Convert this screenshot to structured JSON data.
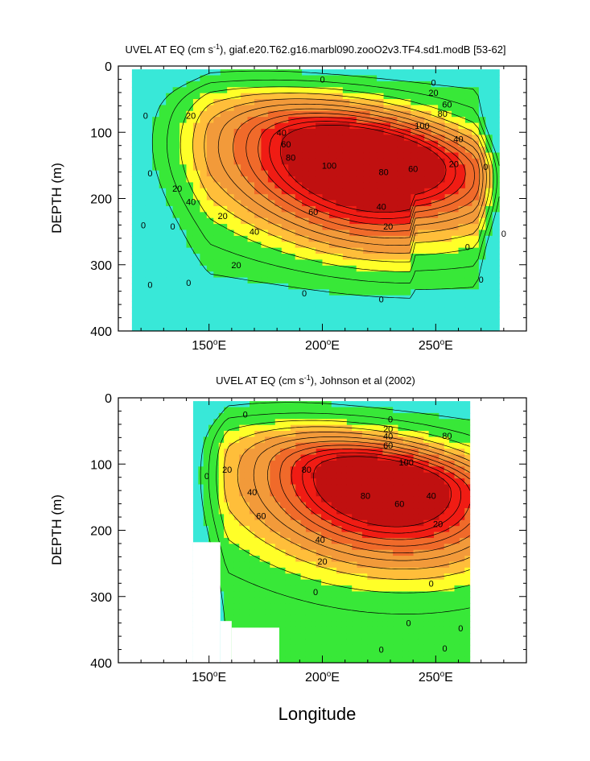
{
  "figure": {
    "xlabel_shared": "Longitude"
  },
  "colors": {
    "frame": "#000000",
    "levels": [
      {
        "min": -20,
        "max": 0,
        "color": "#38e8d8"
      },
      {
        "min": 0,
        "max": 20,
        "color": "#38e838"
      },
      {
        "min": 20,
        "max": 30,
        "color": "#ffff28"
      },
      {
        "min": 30,
        "max": 40,
        "color": "#ffbe3a"
      },
      {
        "min": 40,
        "max": 60,
        "color": "#f29a3a"
      },
      {
        "min": 60,
        "max": 80,
        "color": "#f06a2a"
      },
      {
        "min": 80,
        "max": 100,
        "color": "#f01c14"
      },
      {
        "min": 100,
        "max": 140,
        "color": "#c01010"
      }
    ]
  },
  "chart_data": [
    {
      "type": "heatmap",
      "title_prefix": "UVEL AT EQ (cm s",
      "title_sup": "-1",
      "title_suffix": "), giaf.e20.T62.g16.marbl090.zooO2v3.TF4.sd1.modB [53-62]",
      "ylabel": "DEPTH (m)",
      "xlabel": "",
      "xlim": [
        110,
        290
      ],
      "ylim": [
        0,
        400
      ],
      "y_inverted": true,
      "xticks": [
        {
          "value": 150,
          "label": "150°E"
        },
        {
          "value": 200,
          "label": "200°E"
        },
        {
          "value": 250,
          "label": "250°E"
        }
      ],
      "yticks": [
        0,
        100,
        200,
        300,
        400
      ],
      "data_extent": {
        "lon": [
          116,
          278
        ],
        "depth": [
          5,
          400
        ]
      },
      "core": {
        "lon": 220,
        "depth": 125,
        "max_speed": 110
      },
      "contour_levels": [
        0,
        10,
        20,
        30,
        40,
        50,
        60,
        70,
        80,
        90,
        100
      ],
      "contour_labels": [
        {
          "lon": 200,
          "depth": 20,
          "text": "0"
        },
        {
          "lon": 249,
          "depth": 25,
          "text": "0"
        },
        {
          "lon": 249,
          "depth": 40,
          "text": "20"
        },
        {
          "lon": 255,
          "depth": 58,
          "text": "60"
        },
        {
          "lon": 253,
          "depth": 72,
          "text": "80"
        },
        {
          "lon": 244,
          "depth": 90,
          "text": "100"
        },
        {
          "lon": 142,
          "depth": 75,
          "text": "20"
        },
        {
          "lon": 182,
          "depth": 100,
          "text": "40"
        },
        {
          "lon": 184,
          "depth": 118,
          "text": "60"
        },
        {
          "lon": 186,
          "depth": 138,
          "text": "80"
        },
        {
          "lon": 203,
          "depth": 150,
          "text": "100"
        },
        {
          "lon": 227,
          "depth": 160,
          "text": "80"
        },
        {
          "lon": 240,
          "depth": 155,
          "text": "60"
        },
        {
          "lon": 260,
          "depth": 110,
          "text": "40"
        },
        {
          "lon": 258,
          "depth": 148,
          "text": "20"
        },
        {
          "lon": 272,
          "depth": 152,
          "text": "0"
        },
        {
          "lon": 136,
          "depth": 185,
          "text": "20"
        },
        {
          "lon": 142,
          "depth": 205,
          "text": "40"
        },
        {
          "lon": 156,
          "depth": 226,
          "text": "20"
        },
        {
          "lon": 196,
          "depth": 220,
          "text": "60"
        },
        {
          "lon": 226,
          "depth": 212,
          "text": "40"
        },
        {
          "lon": 170,
          "depth": 250,
          "text": "40"
        },
        {
          "lon": 229,
          "depth": 242,
          "text": "20"
        },
        {
          "lon": 162,
          "depth": 300,
          "text": "20"
        },
        {
          "lon": 192,
          "depth": 343,
          "text": "0"
        },
        {
          "lon": 226,
          "depth": 352,
          "text": "0"
        },
        {
          "lon": 264,
          "depth": 273,
          "text": "0"
        },
        {
          "lon": 280,
          "depth": 253,
          "text": "0"
        },
        {
          "lon": 270,
          "depth": 322,
          "text": "0"
        },
        {
          "lon": 122,
          "depth": 75,
          "text": "0"
        },
        {
          "lon": 124,
          "depth": 162,
          "text": "0"
        },
        {
          "lon": 121,
          "depth": 240,
          "text": "0"
        },
        {
          "lon": 134,
          "depth": 242,
          "text": "0"
        },
        {
          "lon": 124,
          "depth": 330,
          "text": "0"
        },
        {
          "lon": 141,
          "depth": 327,
          "text": "0"
        }
      ]
    },
    {
      "type": "heatmap",
      "title_prefix": "UVEL AT EQ (cm s",
      "title_sup": "-1",
      "title_suffix": "), Johnson et al (2002)",
      "ylabel": "DEPTH (m)",
      "xlabel": "Longitude",
      "xlim": [
        110,
        290
      ],
      "ylim": [
        0,
        400
      ],
      "y_inverted": true,
      "xticks": [
        {
          "value": 150,
          "label": "150°E"
        },
        {
          "value": 200,
          "label": "200°E"
        },
        {
          "value": 250,
          "label": "250°E"
        }
      ],
      "yticks": [
        0,
        100,
        200,
        300,
        400
      ],
      "data_extent": {
        "lon": [
          143,
          265
        ],
        "depth": [
          5,
          400
        ]
      },
      "missing_regions": [
        {
          "lon": [
            143,
            155
          ],
          "depth": [
            218,
            400
          ]
        },
        {
          "lon": [
            155,
            160
          ],
          "depth": [
            337,
            400
          ]
        },
        {
          "lon": [
            160,
            181
          ],
          "depth": [
            347,
            400
          ]
        }
      ],
      "core": {
        "lon": 232,
        "depth": 110,
        "max_speed": 105
      },
      "contour_levels": [
        0,
        10,
        20,
        30,
        40,
        50,
        60,
        70,
        80,
        90,
        100
      ],
      "contour_labels": [
        {
          "lon": 166,
          "depth": 25,
          "text": "0"
        },
        {
          "lon": 149,
          "depth": 118,
          "text": "0"
        },
        {
          "lon": 230,
          "depth": 32,
          "text": "0"
        },
        {
          "lon": 229,
          "depth": 47,
          "text": "20"
        },
        {
          "lon": 229,
          "depth": 58,
          "text": "40"
        },
        {
          "lon": 229,
          "depth": 72,
          "text": "60"
        },
        {
          "lon": 255,
          "depth": 57,
          "text": "80"
        },
        {
          "lon": 237,
          "depth": 97,
          "text": "100"
        },
        {
          "lon": 158,
          "depth": 108,
          "text": "20"
        },
        {
          "lon": 169,
          "depth": 142,
          "text": "40"
        },
        {
          "lon": 173,
          "depth": 178,
          "text": "60"
        },
        {
          "lon": 193,
          "depth": 108,
          "text": "80"
        },
        {
          "lon": 219,
          "depth": 148,
          "text": "80"
        },
        {
          "lon": 234,
          "depth": 160,
          "text": "60"
        },
        {
          "lon": 248,
          "depth": 148,
          "text": "40"
        },
        {
          "lon": 251,
          "depth": 190,
          "text": "20"
        },
        {
          "lon": 199,
          "depth": 214,
          "text": "40"
        },
        {
          "lon": 200,
          "depth": 247,
          "text": "20"
        },
        {
          "lon": 197,
          "depth": 293,
          "text": "0"
        },
        {
          "lon": 248,
          "depth": 280,
          "text": "0"
        },
        {
          "lon": 238,
          "depth": 340,
          "text": "0"
        },
        {
          "lon": 261,
          "depth": 348,
          "text": "0"
        },
        {
          "lon": 226,
          "depth": 380,
          "text": "0"
        },
        {
          "lon": 254,
          "depth": 378,
          "text": "0"
        }
      ]
    }
  ]
}
